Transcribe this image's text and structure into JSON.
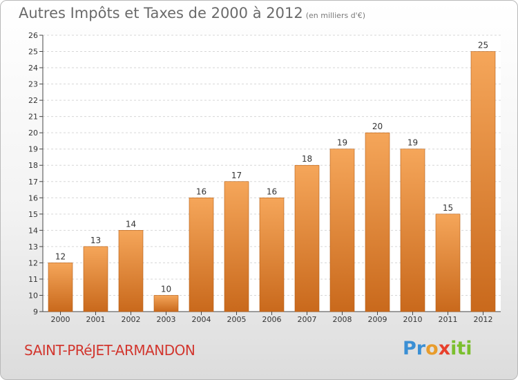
{
  "header": {
    "title": "Autres Impôts et Taxes de 2000 à 2012",
    "unit": "(en milliers d'€)"
  },
  "footer": {
    "commune": "SAINT-PRéJET-ARMANDON",
    "logo_letters": [
      "P",
      "r",
      "o",
      "x",
      "i",
      "t",
      "i"
    ],
    "logo_colors": [
      "#3a8fd4",
      "#3a8fd4",
      "#e89c2c",
      "#e8402c",
      "#7bbf2e",
      "#7bbf2e",
      "#7bbf2e"
    ]
  },
  "colors": {
    "bar_light": "#f5a65a",
    "bar_dark": "#c9691c",
    "grid": "#d6d6d6",
    "axis_text": "#333333"
  },
  "chart_data": {
    "type": "bar",
    "categories": [
      "2000",
      "2001",
      "2002",
      "2003",
      "2004",
      "2005",
      "2006",
      "2007",
      "2008",
      "2009",
      "2010",
      "2011",
      "2012"
    ],
    "values": [
      12,
      13,
      14,
      10,
      16,
      17,
      16,
      18,
      19,
      20,
      19,
      15,
      25
    ],
    "value_labels": [
      "12",
      "13",
      "14",
      "10",
      "16",
      "17",
      "16",
      "18",
      "19",
      "20",
      "19",
      "15",
      "25"
    ],
    "y_ticks": [
      "9",
      "10",
      "11",
      "12",
      "13",
      "14",
      "15",
      "16",
      "17",
      "18",
      "19",
      "20",
      "21",
      "22",
      "23",
      "24",
      "25",
      "26"
    ],
    "ylim": [
      9,
      26
    ],
    "grid": true,
    "title": "Autres Impôts et Taxes de 2000 à 2012",
    "xlabel": "",
    "ylabel": ""
  }
}
